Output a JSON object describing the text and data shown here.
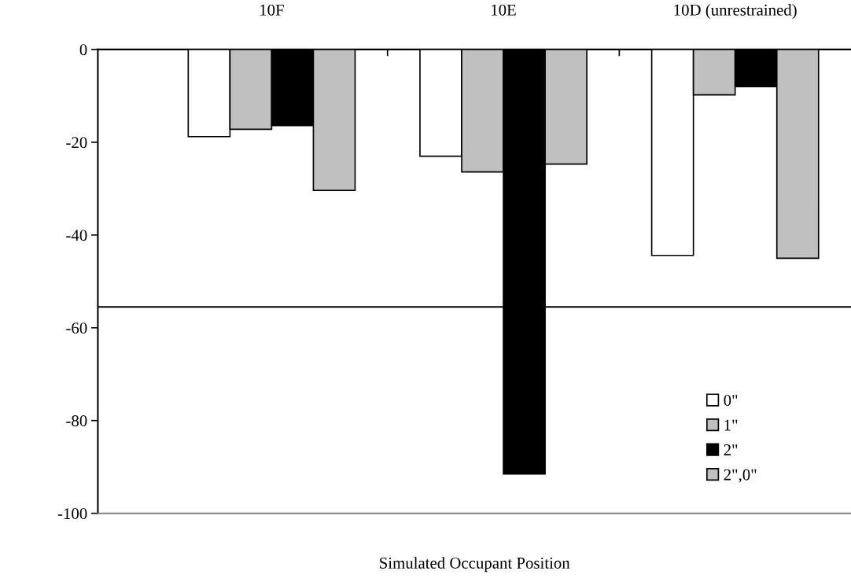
{
  "chart_data": {
    "type": "bar",
    "xlabel": "Simulated Occupant Position",
    "categories": [
      "10F",
      "10E",
      "10D (unrestrained)"
    ],
    "series": [
      {
        "name": "0\"",
        "color": "#ffffff",
        "values": [
          -18.8,
          -23,
          -44.4
        ]
      },
      {
        "name": "1\"",
        "color": "#c0c0c0",
        "values": [
          -17.2,
          -26.4,
          -9.8
        ]
      },
      {
        "name": "2\"",
        "color": "#000000",
        "values": [
          -16.4,
          -91.5,
          -8
        ]
      },
      {
        "name": "2\",0\"",
        "color": "#c0c0c0",
        "values": [
          -30.4,
          -24.7,
          -45
        ]
      }
    ],
    "ylim": [
      -100,
      0
    ],
    "yticks": [
      0,
      -20,
      -40,
      -60,
      -80,
      -100
    ],
    "ref_lines": [
      {
        "axis": "y",
        "value": -55.5,
        "color": "#000000"
      }
    ],
    "grid": false,
    "legend": "bottom right"
  }
}
